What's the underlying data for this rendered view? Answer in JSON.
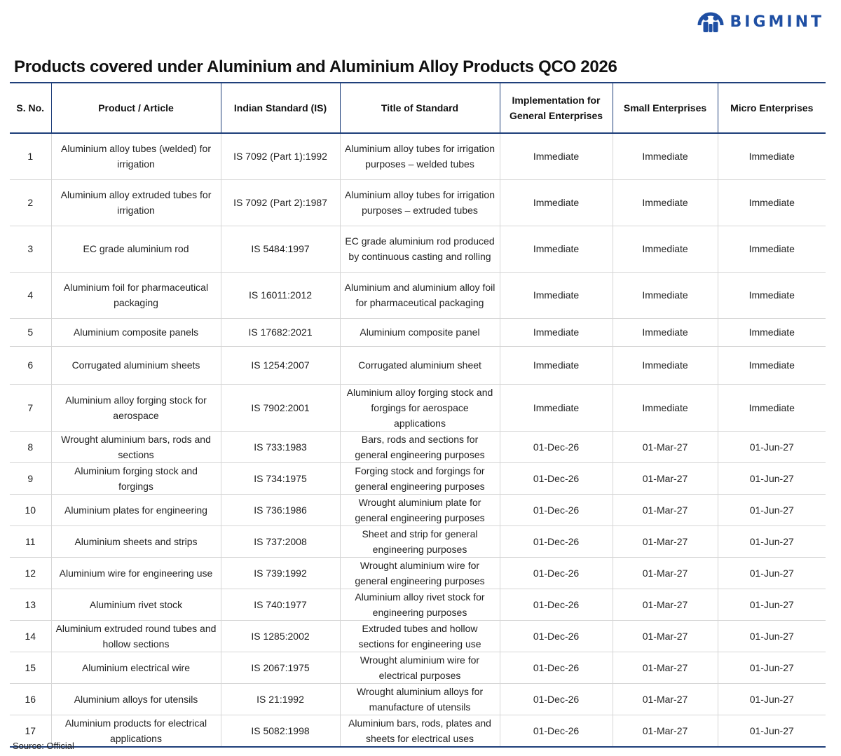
{
  "brand": {
    "name": "BIGMINT",
    "color": "#1f4fa3",
    "icon": "bigmint-logo-icon"
  },
  "title": "Products covered under Aluminium and Aluminium Alloy Products QCO 2026",
  "table": {
    "headers": [
      "S. No.",
      "Product / Article",
      "Indian Standard (IS)",
      "Title of Standard",
      "Implementation for General Enterprises",
      "Small Enterprises",
      "Micro Enterprises"
    ],
    "rows": [
      [
        "1",
        "Aluminium alloy tubes (welded) for irrigation",
        "IS 7092 (Part 1):1992",
        "Aluminium alloy tubes for irrigation purposes – welded tubes",
        "Immediate",
        "Immediate",
        "Immediate"
      ],
      [
        "2",
        "Aluminium alloy extruded tubes for irrigation",
        "IS 7092 (Part 2):1987",
        "Aluminium alloy tubes for irrigation purposes – extruded tubes",
        "Immediate",
        "Immediate",
        "Immediate"
      ],
      [
        "3",
        "EC grade aluminium rod",
        "IS 5484:1997",
        "EC grade aluminium rod produced by continuous casting and rolling",
        "Immediate",
        "Immediate",
        "Immediate"
      ],
      [
        "4",
        "Aluminium foil for pharmaceutical packaging",
        "IS 16011:2012",
        "Aluminium and aluminium alloy foil for pharmaceutical packaging",
        "Immediate",
        "Immediate",
        "Immediate"
      ],
      [
        "5",
        "Aluminium composite panels",
        "IS 17682:2021",
        "Aluminium composite panel",
        "Immediate",
        "Immediate",
        "Immediate"
      ],
      [
        "6",
        "Corrugated aluminium sheets",
        "IS 1254:2007",
        "Corrugated aluminium sheet",
        "Immediate",
        "Immediate",
        "Immediate"
      ],
      [
        "7",
        "Aluminium alloy forging stock for aerospace",
        "IS 7902:2001",
        "Aluminium alloy forging stock and forgings for aerospace applications",
        "Immediate",
        "Immediate",
        "Immediate"
      ],
      [
        "8",
        "Wrought aluminium bars, rods and sections",
        "IS 733:1983",
        "Bars, rods and sections for general engineering purposes",
        "01-Dec-26",
        "01-Mar-27",
        "01-Jun-27"
      ],
      [
        "9",
        "Aluminium forging stock and forgings",
        "IS 734:1975",
        "Forging stock and forgings for general engineering purposes",
        "01-Dec-26",
        "01-Mar-27",
        "01-Jun-27"
      ],
      [
        "10",
        "Aluminium plates for engineering",
        "IS 736:1986",
        "Wrought aluminium plate for general engineering purposes",
        "01-Dec-26",
        "01-Mar-27",
        "01-Jun-27"
      ],
      [
        "11",
        "Aluminium sheets and strips",
        "IS 737:2008",
        "Sheet and strip for general engineering purposes",
        "01-Dec-26",
        "01-Mar-27",
        "01-Jun-27"
      ],
      [
        "12",
        "Aluminium wire for engineering use",
        "IS 739:1992",
        "Wrought aluminium wire for general engineering purposes",
        "01-Dec-26",
        "01-Mar-27",
        "01-Jun-27"
      ],
      [
        "13",
        "Aluminium rivet stock",
        "IS 740:1977",
        "Aluminium alloy rivet stock for engineering purposes",
        "01-Dec-26",
        "01-Mar-27",
        "01-Jun-27"
      ],
      [
        "14",
        "Aluminium extruded round tubes and hollow sections",
        "IS 1285:2002",
        "Extruded tubes and hollow sections for engineering use",
        "01-Dec-26",
        "01-Mar-27",
        "01-Jun-27"
      ],
      [
        "15",
        "Aluminium electrical wire",
        "IS 2067:1975",
        "Wrought aluminium wire for electrical purposes",
        "01-Dec-26",
        "01-Mar-27",
        "01-Jun-27"
      ],
      [
        "16",
        "Aluminium alloys for utensils",
        "IS 21:1992",
        "Wrought aluminium alloys for manufacture of utensils",
        "01-Dec-26",
        "01-Mar-27",
        "01-Jun-27"
      ],
      [
        "17",
        "Aluminium products for electrical applications",
        "IS 5082:1998",
        "Aluminium bars, rods, plates and sheets for electrical uses",
        "01-Dec-26",
        "01-Mar-27",
        "01-Jun-27"
      ]
    ]
  },
  "source": "Source: Official"
}
